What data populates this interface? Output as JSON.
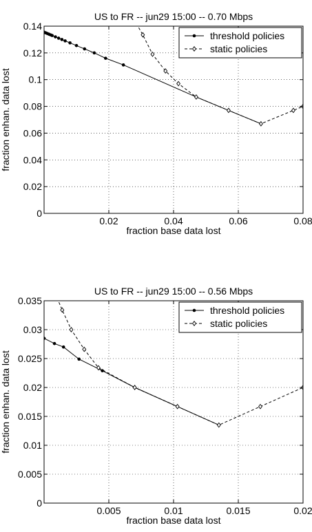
{
  "chart_data": [
    {
      "type": "line",
      "title": "US to FR -- jun29 15:00 -- 0.70 Mbps",
      "xlabel": "fraction base data lost",
      "ylabel": "fraction enhan. data lost",
      "xlim": [
        0,
        0.08
      ],
      "ylim": [
        0,
        0.14
      ],
      "xticks": [
        0.02,
        0.04,
        0.06,
        0.08
      ],
      "xtick_labels": [
        "0.02",
        "0.04",
        "0.06",
        "0.08"
      ],
      "yticks": [
        0,
        0.02,
        0.04,
        0.06,
        0.08,
        0.1,
        0.12,
        0.14
      ],
      "ytick_labels": [
        "0",
        "0.02",
        "0.04",
        "0.06",
        "0.08",
        "0.1",
        "0.12",
        "0.14"
      ],
      "grid": true,
      "legend_position": "top-right",
      "series": [
        {
          "name": "threshold policies",
          "style": "solid",
          "marker": "dot",
          "points": [
            [
              0.0,
              0.1355
            ],
            [
              0.0005,
              0.135
            ],
            [
              0.001,
              0.1345
            ],
            [
              0.0015,
              0.134
            ],
            [
              0.002,
              0.1335
            ],
            [
              0.0025,
              0.133
            ],
            [
              0.0035,
              0.132
            ],
            [
              0.0045,
              0.131
            ],
            [
              0.0055,
              0.13
            ],
            [
              0.0065,
              0.129
            ],
            [
              0.008,
              0.1275
            ],
            [
              0.01,
              0.1255
            ],
            [
              0.0125,
              0.123
            ],
            [
              0.0155,
              0.12
            ],
            [
              0.019,
              0.116
            ],
            [
              0.0245,
              0.111
            ],
            [
              0.047,
              0.087
            ],
            [
              0.057,
              0.077
            ],
            [
              0.067,
              0.067
            ]
          ]
        },
        {
          "name": "static policies",
          "style": "dashed",
          "marker": "diamond",
          "points": [
            [
              0.0285,
              0.142
            ],
            [
              0.0305,
              0.1335
            ],
            [
              0.0335,
              0.119
            ],
            [
              0.0375,
              0.1065
            ],
            [
              0.0415,
              0.097
            ],
            [
              0.047,
              0.087
            ],
            [
              0.057,
              0.077
            ],
            [
              0.067,
              0.067
            ],
            [
              0.077,
              0.077
            ],
            [
              0.08,
              0.08
            ]
          ]
        }
      ]
    },
    {
      "type": "line",
      "title": "US to FR -- jun29 15:00 -- 0.56 Mbps",
      "xlabel": "fraction base data lost",
      "ylabel": "fraction enhan. data lost",
      "xlim": [
        0,
        0.02
      ],
      "ylim": [
        0,
        0.035
      ],
      "xticks": [
        0.005,
        0.01,
        0.015,
        0.02
      ],
      "xtick_labels": [
        "0.005",
        "0.01",
        "0.015",
        "0.02"
      ],
      "yticks": [
        0,
        0.005,
        0.01,
        0.015,
        0.02,
        0.025,
        0.03,
        0.035
      ],
      "ytick_labels": [
        "0",
        "0.005",
        "0.01",
        "0.015",
        "0.02",
        "0.025",
        "0.03",
        "0.035"
      ],
      "grid": true,
      "legend_position": "top-right",
      "series": [
        {
          "name": "threshold policies",
          "style": "solid",
          "marker": "dot",
          "points": [
            [
              0.0,
              0.0285
            ],
            [
              0.0008,
              0.0276
            ],
            [
              0.0015,
              0.027
            ],
            [
              0.0027,
              0.0249
            ],
            [
              0.0045,
              0.0229
            ],
            [
              0.007,
              0.02
            ],
            [
              0.0103,
              0.0167
            ],
            [
              0.0135,
              0.0135
            ]
          ]
        },
        {
          "name": "static policies",
          "style": "dashed",
          "marker": "diamond",
          "points": [
            [
              0.001,
              0.0355
            ],
            [
              0.0014,
              0.0334
            ],
            [
              0.0021,
              0.03
            ],
            [
              0.0031,
              0.0266
            ],
            [
              0.0042,
              0.0234
            ],
            [
              0.007,
              0.02
            ],
            [
              0.0103,
              0.0167
            ],
            [
              0.0135,
              0.0135
            ],
            [
              0.0167,
              0.0167
            ],
            [
              0.02,
              0.02
            ]
          ]
        }
      ]
    }
  ]
}
